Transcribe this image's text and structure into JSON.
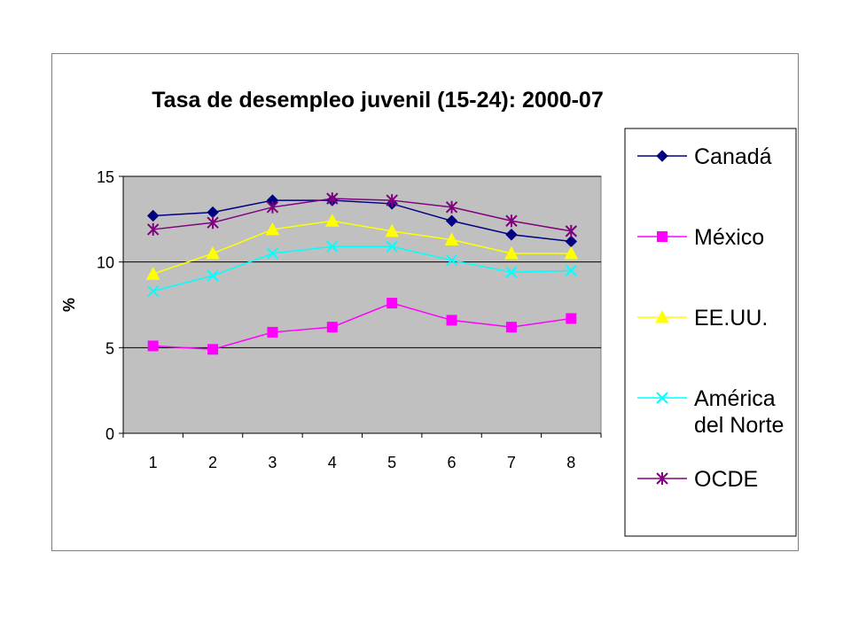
{
  "chart_data": {
    "type": "line",
    "title": "Tasa de desempleo juvenil (15-24): 2000-07",
    "xlabel": "",
    "ylabel": "%",
    "x": [
      1,
      2,
      3,
      4,
      5,
      6,
      7,
      8
    ],
    "ylim": [
      0,
      15
    ],
    "yticks": [
      0,
      5,
      10,
      15
    ],
    "grid": "horizontal",
    "plot_background": "#c0c0c0",
    "legend_position": "right",
    "series": [
      {
        "name": "Canadá",
        "color": "#000080",
        "marker": "diamond",
        "values": [
          12.7,
          12.9,
          13.6,
          13.6,
          13.4,
          12.4,
          11.6,
          11.2
        ]
      },
      {
        "name": "México",
        "color": "#ff00ff",
        "marker": "square",
        "values": [
          5.1,
          4.9,
          5.9,
          6.2,
          7.6,
          6.6,
          6.2,
          6.7
        ]
      },
      {
        "name": "EE.UU.",
        "color": "#ffff00",
        "marker": "triangle",
        "values": [
          9.3,
          10.5,
          11.9,
          12.4,
          11.8,
          11.3,
          10.5,
          10.5
        ]
      },
      {
        "name": "América del Norte",
        "name_lines": [
          "América",
          "del Norte"
        ],
        "color": "#00ffff",
        "marker": "x",
        "values": [
          8.3,
          9.2,
          10.5,
          10.9,
          10.9,
          10.1,
          9.4,
          9.5
        ]
      },
      {
        "name": "OCDE",
        "color": "#800080",
        "marker": "star",
        "values": [
          11.9,
          12.3,
          13.2,
          13.7,
          13.6,
          13.2,
          12.4,
          11.8
        ]
      }
    ]
  }
}
